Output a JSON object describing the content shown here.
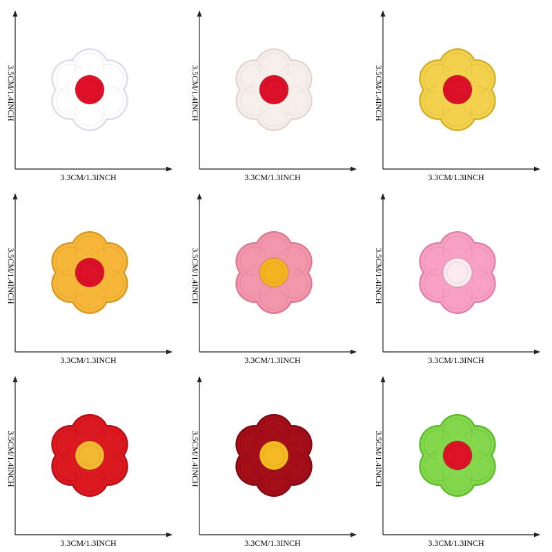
{
  "axis_labels": {
    "width": "3.3CM/1.3INCH",
    "height": "3.5CM/1.4INCH"
  },
  "patches": [
    {
      "petal": "#ffffff",
      "edge": "#dcdcec",
      "center": "#e0102a"
    },
    {
      "petal": "#f6eeea",
      "edge": "#e4d6d0",
      "center": "#dc1028"
    },
    {
      "petal": "#f2d24c",
      "edge": "#d4b030",
      "center": "#dc1028"
    },
    {
      "petal": "#f6b63a",
      "edge": "#d89a24",
      "center": "#dc1028"
    },
    {
      "petal": "#f296ac",
      "edge": "#de7a92",
      "center": "#f2b420"
    },
    {
      "petal": "#f7a0c4",
      "edge": "#e282aa",
      "center": "#fbeaf0"
    },
    {
      "petal": "#dc1820",
      "edge": "#b80e16",
      "center": "#f2b830"
    },
    {
      "petal": "#a40e18",
      "edge": "#820810",
      "center": "#f4b820"
    },
    {
      "petal": "#84d64c",
      "edge": "#5ebc2e",
      "center": "#dc1426"
    }
  ]
}
